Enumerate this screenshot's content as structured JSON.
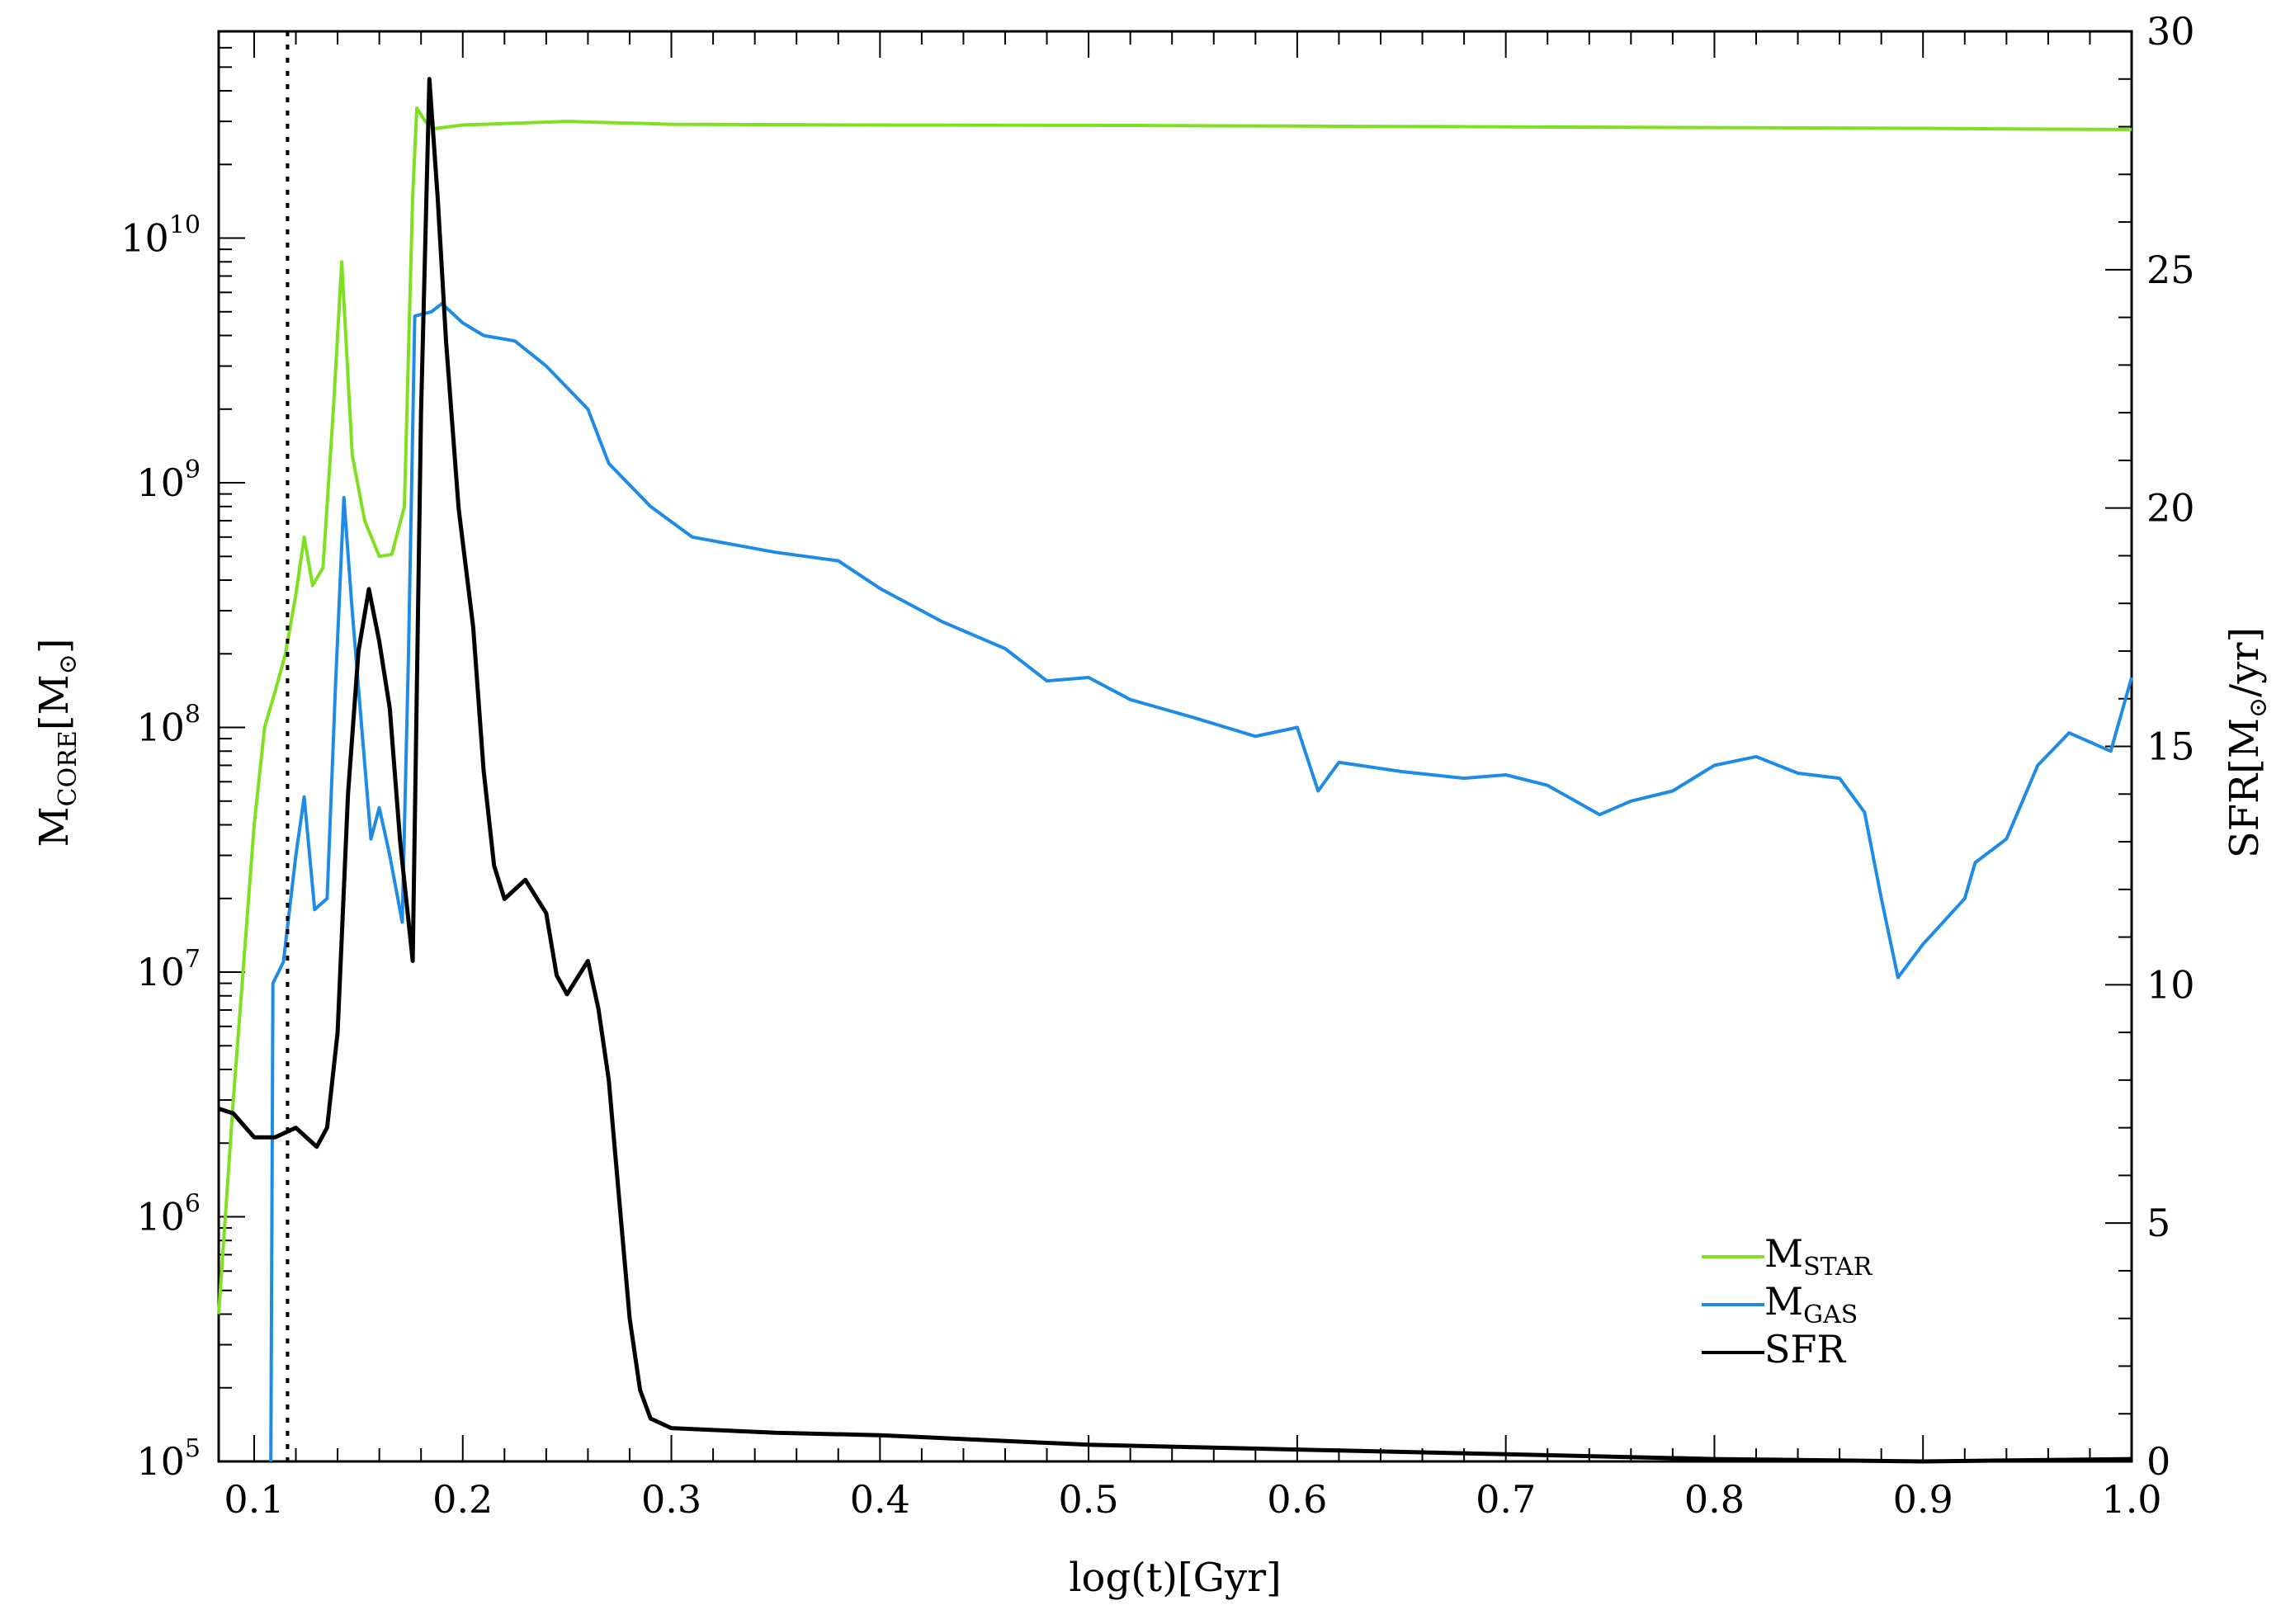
{
  "chart_data": {
    "type": "line",
    "x_axis": {
      "label": "log(t)[Gyr]",
      "range": [
        0.083,
        1.0
      ],
      "ticks": [
        "0.1",
        "0.2",
        "0.3",
        "0.4",
        "0.5",
        "0.6",
        "0.7",
        "0.8",
        "0.9",
        "1.0"
      ]
    },
    "y_left_axis": {
      "label_main": "M",
      "label_sub": "CORE",
      "label_unit": "[M",
      "label_unit_symbol": "⊙",
      "label_close": "]",
      "scale": "log",
      "range": [
        100000,
        70000000000
      ],
      "ticks": [
        {
          "base": "10",
          "exp": "5"
        },
        {
          "base": "10",
          "exp": "6"
        },
        {
          "base": "10",
          "exp": "7"
        },
        {
          "base": "10",
          "exp": "8"
        },
        {
          "base": "10",
          "exp": "9"
        },
        {
          "base": "10",
          "exp": "10"
        }
      ]
    },
    "y_right_axis": {
      "label_main": "SFR[M",
      "label_symbol": "⊙",
      "label_rest": "/yr]",
      "scale": "linear",
      "range": [
        0,
        30
      ],
      "ticks": [
        "0",
        "5",
        "10",
        "15",
        "20",
        "25",
        "30"
      ]
    },
    "vertical_marker": {
      "x": 0.116,
      "style": "dotted"
    },
    "legend": {
      "position": "bottom-right",
      "entries": [
        {
          "main": "M",
          "sub": "STAR",
          "color": "#7fe020"
        },
        {
          "main": "M",
          "sub": "GAS",
          "color": "#1e8be6"
        },
        {
          "main": "SFR",
          "sub": "",
          "color": "#000000"
        }
      ]
    },
    "series": [
      {
        "axis": "left",
        "color": "#7fe020",
        "points": [
          [
            0.083,
            400000
          ],
          [
            0.09,
            3000000
          ],
          [
            0.1,
            40000000
          ],
          [
            0.105,
            100000000
          ],
          [
            0.11,
            140000000
          ],
          [
            0.115,
            200000000
          ],
          [
            0.12,
            350000000
          ],
          [
            0.124,
            600000000
          ],
          [
            0.128,
            380000000
          ],
          [
            0.133,
            450000000
          ],
          [
            0.138,
            2000000000
          ],
          [
            0.142,
            8000000000
          ],
          [
            0.147,
            1300000000
          ],
          [
            0.153,
            700000000
          ],
          [
            0.16,
            500000000
          ],
          [
            0.166,
            510000000
          ],
          [
            0.172,
            800000000
          ],
          [
            0.176,
            15000000000
          ],
          [
            0.178,
            34000000000
          ],
          [
            0.182,
            30000000000
          ],
          [
            0.186,
            28000000000
          ],
          [
            0.2,
            29000000000
          ],
          [
            0.25,
            30000000000
          ],
          [
            0.3,
            29200000000
          ],
          [
            0.4,
            29000000000
          ],
          [
            0.5,
            28900000000
          ],
          [
            0.6,
            28700000000
          ],
          [
            0.7,
            28500000000
          ],
          [
            0.8,
            28300000000
          ],
          [
            0.9,
            28100000000
          ],
          [
            0.95,
            27900000000
          ],
          [
            1.0,
            27800000000
          ]
        ]
      },
      {
        "axis": "left",
        "color": "#1e8be6",
        "points": [
          [
            0.108,
            100000
          ],
          [
            0.109,
            9000000
          ],
          [
            0.114,
            11000000
          ],
          [
            0.12,
            30000000
          ],
          [
            0.124,
            52000000
          ],
          [
            0.129,
            18000000
          ],
          [
            0.135,
            20000000
          ],
          [
            0.139,
            150000000
          ],
          [
            0.143,
            870000000
          ],
          [
            0.147,
            300000000
          ],
          [
            0.152,
            90000000
          ],
          [
            0.156,
            35000000
          ],
          [
            0.16,
            47000000
          ],
          [
            0.165,
            30000000
          ],
          [
            0.171,
            16000000
          ],
          [
            0.174,
            200000000
          ],
          [
            0.177,
            4800000000
          ],
          [
            0.185,
            5000000000
          ],
          [
            0.19,
            5400000000
          ],
          [
            0.2,
            4500000000
          ],
          [
            0.21,
            4000000000
          ],
          [
            0.225,
            3800000000
          ],
          [
            0.24,
            3000000000
          ],
          [
            0.26,
            2000000000
          ],
          [
            0.27,
            1200000000
          ],
          [
            0.29,
            800000000
          ],
          [
            0.31,
            600000000
          ],
          [
            0.35,
            520000000
          ],
          [
            0.38,
            480000000
          ],
          [
            0.4,
            370000000
          ],
          [
            0.43,
            270000000
          ],
          [
            0.46,
            210000000
          ],
          [
            0.48,
            155000000
          ],
          [
            0.5,
            160000000
          ],
          [
            0.52,
            130000000
          ],
          [
            0.55,
            110000000
          ],
          [
            0.58,
            92000000
          ],
          [
            0.6,
            100000000
          ],
          [
            0.61,
            55000000
          ],
          [
            0.62,
            72000000
          ],
          [
            0.65,
            66000000
          ],
          [
            0.68,
            62000000
          ],
          [
            0.7,
            64000000
          ],
          [
            0.72,
            58000000
          ],
          [
            0.745,
            44000000
          ],
          [
            0.76,
            50000000
          ],
          [
            0.78,
            55000000
          ],
          [
            0.8,
            70000000
          ],
          [
            0.82,
            76000000
          ],
          [
            0.84,
            65000000
          ],
          [
            0.86,
            62000000
          ],
          [
            0.872,
            45000000
          ],
          [
            0.88,
            20000000
          ],
          [
            0.888,
            9500000
          ],
          [
            0.9,
            13000000
          ],
          [
            0.92,
            20000000
          ],
          [
            0.925,
            28000000
          ],
          [
            0.94,
            35000000
          ],
          [
            0.955,
            70000000
          ],
          [
            0.97,
            95000000
          ],
          [
            0.99,
            80000000
          ],
          [
            1.0,
            160000000
          ]
        ]
      },
      {
        "axis": "right",
        "color": "#000000",
        "points": [
          [
            0.083,
            7.4
          ],
          [
            0.09,
            7.3
          ],
          [
            0.1,
            6.8
          ],
          [
            0.11,
            6.8
          ],
          [
            0.12,
            7.0
          ],
          [
            0.13,
            6.6
          ],
          [
            0.135,
            7.0
          ],
          [
            0.14,
            9.0
          ],
          [
            0.145,
            14.0
          ],
          [
            0.15,
            17.0
          ],
          [
            0.155,
            18.3
          ],
          [
            0.16,
            17.2
          ],
          [
            0.165,
            15.8
          ],
          [
            0.17,
            13.0
          ],
          [
            0.176,
            10.5
          ],
          [
            0.18,
            22.0
          ],
          [
            0.184,
            29.0
          ],
          [
            0.188,
            26.5
          ],
          [
            0.192,
            23.5
          ],
          [
            0.198,
            20.0
          ],
          [
            0.205,
            17.5
          ],
          [
            0.21,
            14.5
          ],
          [
            0.215,
            12.5
          ],
          [
            0.22,
            11.8
          ],
          [
            0.23,
            12.2
          ],
          [
            0.24,
            11.5
          ],
          [
            0.245,
            10.2
          ],
          [
            0.25,
            9.8
          ],
          [
            0.26,
            10.5
          ],
          [
            0.265,
            9.5
          ],
          [
            0.27,
            8.0
          ],
          [
            0.275,
            5.5
          ],
          [
            0.28,
            3.0
          ],
          [
            0.285,
            1.5
          ],
          [
            0.29,
            0.9
          ],
          [
            0.3,
            0.7
          ],
          [
            0.35,
            0.6
          ],
          [
            0.4,
            0.55
          ],
          [
            0.5,
            0.35
          ],
          [
            0.6,
            0.25
          ],
          [
            0.7,
            0.15
          ],
          [
            0.8,
            0.05
          ],
          [
            0.9,
            0.0
          ],
          [
            1.0,
            0.05
          ]
        ]
      }
    ]
  }
}
